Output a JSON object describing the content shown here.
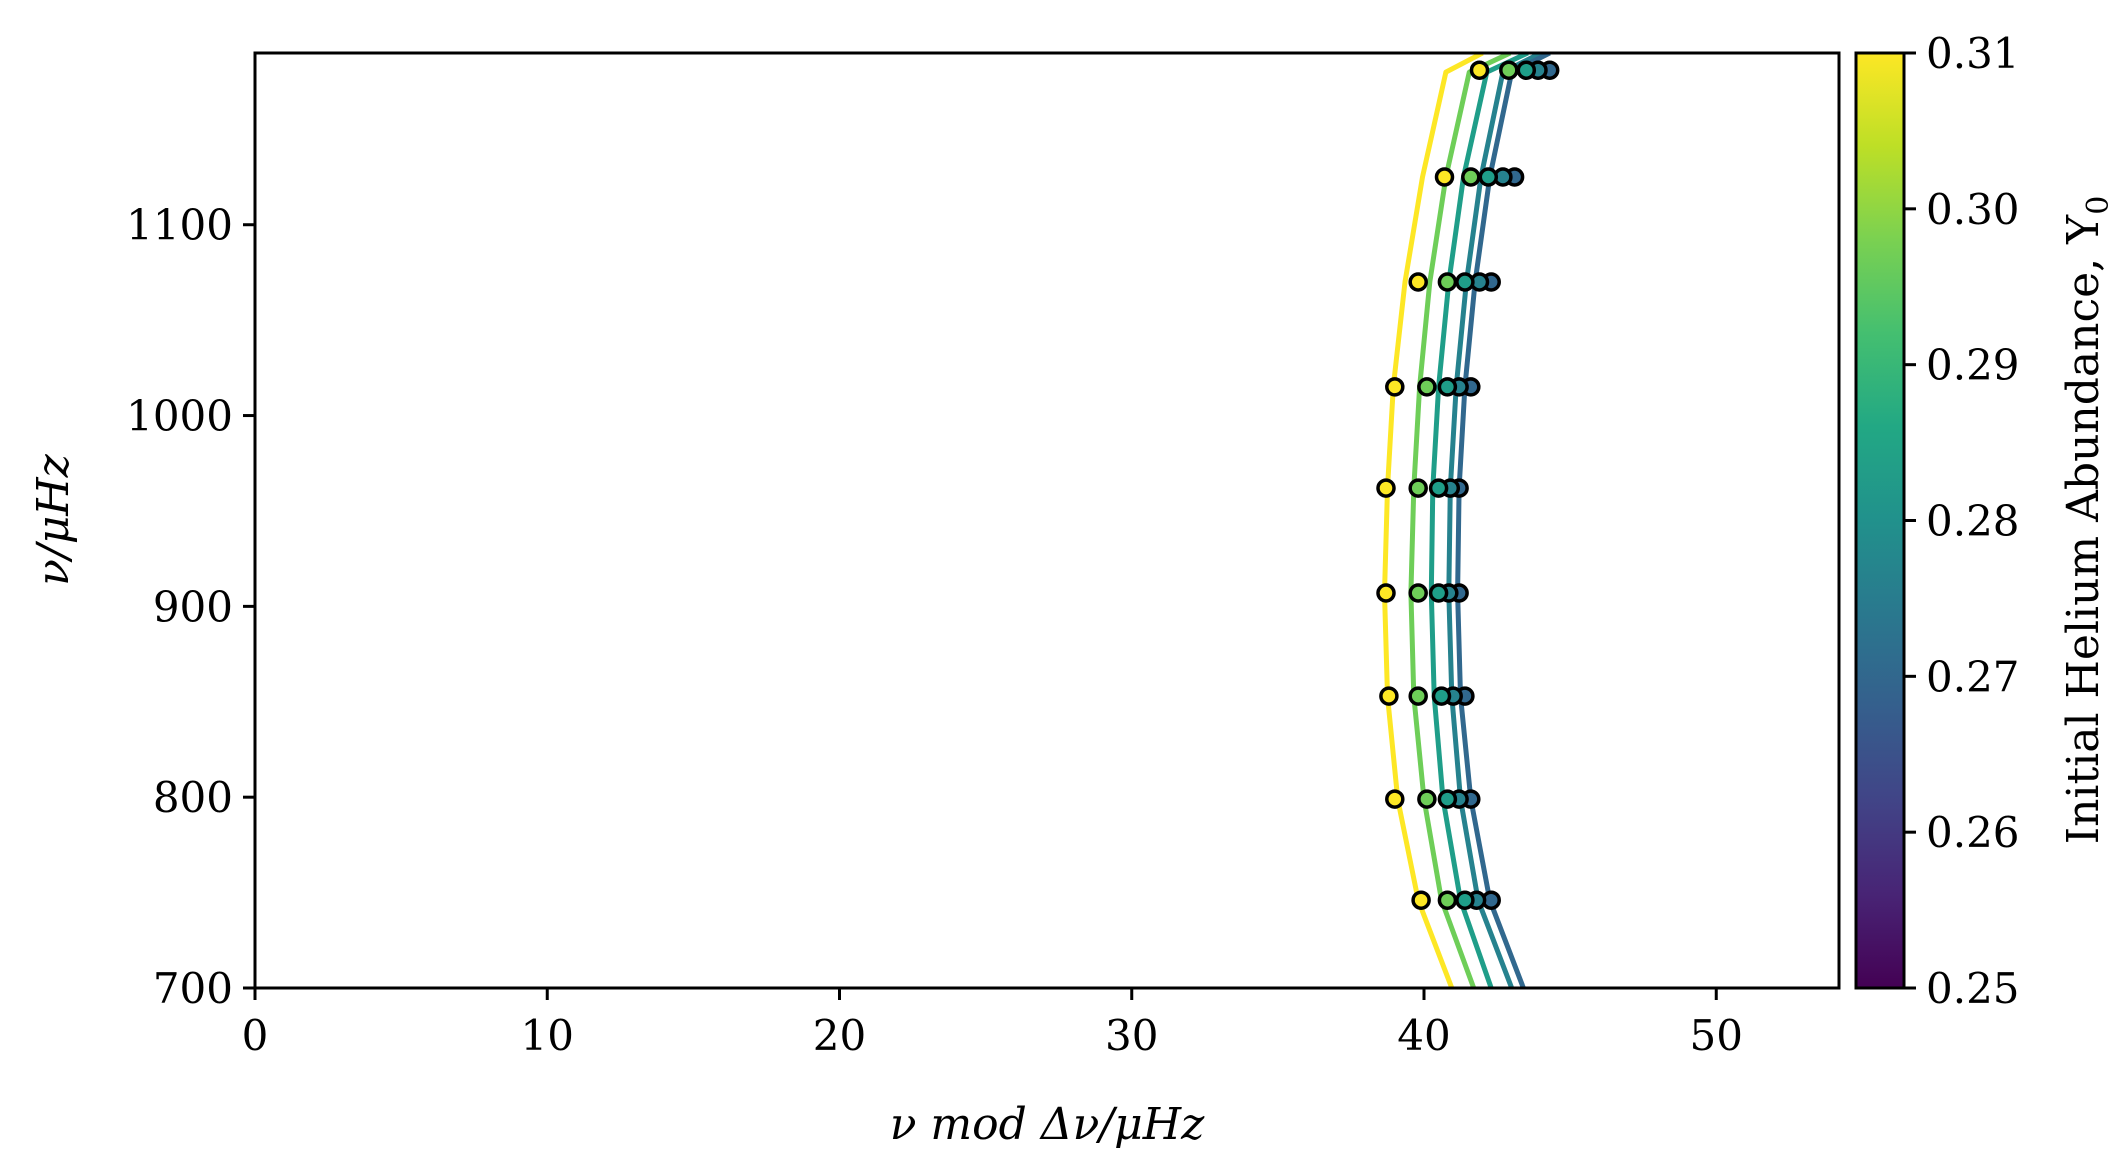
{
  "chart_data": {
    "type": "line",
    "xlabel": "ν  mod Δν/μHz",
    "ylabel": "ν/μHz",
    "xlim": [
      0,
      54.2
    ],
    "ylim": [
      700,
      1190
    ],
    "xticks": [
      "0",
      "10",
      "20",
      "30",
      "40",
      "50"
    ],
    "yticks": [
      "700",
      "800",
      "900",
      "1000",
      "1100"
    ],
    "colorbar": {
      "label": "Initial Helium Abundance, Y",
      "label_subscript": "0",
      "range": [
        0.25,
        0.31
      ],
      "ticks": [
        "0.25",
        "0.26",
        "0.27",
        "0.28",
        "0.29",
        "0.30",
        "0.31"
      ],
      "colormap": "viridis"
    },
    "series": [
      {
        "y0": 0.27,
        "color": "#31688e",
        "x": [
          43.4,
          42.25,
          41.6,
          41.25,
          41.15,
          41.2,
          41.4,
          41.75,
          42.25,
          43.0,
          44.3
        ],
        "y": [
          700,
          746,
          799,
          853,
          907,
          962,
          1015,
          1070,
          1125,
          1180,
          1190
        ],
        "points": [
          {
            "x": 44.3,
            "y": 1181
          },
          {
            "x": 43.1,
            "y": 1125
          },
          {
            "x": 42.3,
            "y": 1070
          },
          {
            "x": 41.6,
            "y": 1015
          },
          {
            "x": 41.2,
            "y": 962
          },
          {
            "x": 41.2,
            "y": 907
          },
          {
            "x": 41.4,
            "y": 853
          },
          {
            "x": 41.6,
            "y": 799
          },
          {
            "x": 42.3,
            "y": 746
          }
        ]
      },
      {
        "y0": 0.28,
        "color": "#26828e",
        "x": [
          43.0,
          41.85,
          41.25,
          40.95,
          40.85,
          40.9,
          41.1,
          41.45,
          41.95,
          42.7,
          44.0
        ],
        "y": [
          700,
          746,
          799,
          853,
          907,
          962,
          1015,
          1070,
          1125,
          1180,
          1190
        ],
        "points": [
          {
            "x": 43.9,
            "y": 1181
          },
          {
            "x": 42.7,
            "y": 1125
          },
          {
            "x": 41.9,
            "y": 1070
          },
          {
            "x": 41.2,
            "y": 1015
          },
          {
            "x": 40.9,
            "y": 962
          },
          {
            "x": 40.85,
            "y": 907
          },
          {
            "x": 41.0,
            "y": 853
          },
          {
            "x": 41.2,
            "y": 799
          },
          {
            "x": 41.8,
            "y": 746
          }
        ]
      },
      {
        "y0": 0.29,
        "color": "#1f9e89",
        "x": [
          42.3,
          41.25,
          40.65,
          40.35,
          40.25,
          40.3,
          40.5,
          40.85,
          41.35,
          42.15,
          43.55
        ],
        "y": [
          700,
          746,
          799,
          853,
          907,
          962,
          1015,
          1070,
          1125,
          1180,
          1190
        ],
        "points": [
          {
            "x": 43.5,
            "y": 1181
          },
          {
            "x": 42.2,
            "y": 1125
          },
          {
            "x": 41.4,
            "y": 1070
          },
          {
            "x": 40.8,
            "y": 1015
          },
          {
            "x": 40.5,
            "y": 962
          },
          {
            "x": 40.5,
            "y": 907
          },
          {
            "x": 40.6,
            "y": 853
          },
          {
            "x": 40.8,
            "y": 799
          },
          {
            "x": 41.4,
            "y": 746
          }
        ]
      },
      {
        "y0": 0.3,
        "color": "#6ece58",
        "x": [
          41.7,
          40.6,
          40.0,
          39.65,
          39.55,
          39.65,
          39.85,
          40.2,
          40.75,
          41.55,
          42.95
        ],
        "y": [
          700,
          746,
          799,
          853,
          907,
          962,
          1015,
          1070,
          1125,
          1180,
          1190
        ],
        "points": [
          {
            "x": 42.9,
            "y": 1181
          },
          {
            "x": 41.6,
            "y": 1125
          },
          {
            "x": 40.8,
            "y": 1070
          },
          {
            "x": 40.1,
            "y": 1015
          },
          {
            "x": 39.8,
            "y": 962
          },
          {
            "x": 39.8,
            "y": 907
          },
          {
            "x": 39.8,
            "y": 853
          },
          {
            "x": 40.1,
            "y": 799
          },
          {
            "x": 40.8,
            "y": 746
          }
        ]
      },
      {
        "y0": 0.31,
        "color": "#fde725",
        "x": [
          40.95,
          39.8,
          39.1,
          38.75,
          38.65,
          38.75,
          38.95,
          39.35,
          39.95,
          40.75,
          42.0
        ],
        "y": [
          700,
          746,
          799,
          853,
          907,
          962,
          1015,
          1070,
          1125,
          1180,
          1190
        ],
        "points": [
          {
            "x": 41.9,
            "y": 1181
          },
          {
            "x": 40.7,
            "y": 1125
          },
          {
            "x": 39.8,
            "y": 1070
          },
          {
            "x": 39.0,
            "y": 1015
          },
          {
            "x": 38.7,
            "y": 962
          },
          {
            "x": 38.7,
            "y": 907
          },
          {
            "x": 38.8,
            "y": 853
          },
          {
            "x": 39.0,
            "y": 799
          },
          {
            "x": 39.9,
            "y": 746
          }
        ]
      }
    ],
    "grid": false,
    "legend": "none"
  }
}
